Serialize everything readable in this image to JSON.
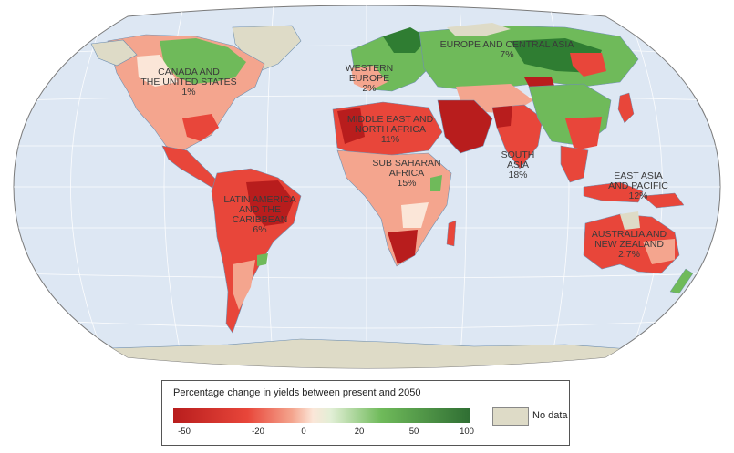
{
  "regions": [
    {
      "id": "canada-us",
      "lines": [
        "CANADA AND",
        "THE UNITED STATES",
        "1%"
      ]
    },
    {
      "id": "europe-central-asia",
      "lines": [
        "EUROPE AND CENTRAL ASIA",
        "7%"
      ]
    },
    {
      "id": "western-europe",
      "lines": [
        "WESTERN",
        "EUROPE",
        "2%"
      ]
    },
    {
      "id": "middle-east-north-africa",
      "lines": [
        "MIDDLE EAST AND",
        "NORTH AFRICA",
        "11%"
      ]
    },
    {
      "id": "sub-saharan-africa",
      "lines": [
        "SUB SAHARAN",
        "AFRICA",
        "15%"
      ]
    },
    {
      "id": "south-asia",
      "lines": [
        "SOUTH",
        "ASIA",
        "18%"
      ]
    },
    {
      "id": "east-asia-pacific",
      "lines": [
        "EAST ASIA",
        "AND PACIFIC",
        "12%"
      ]
    },
    {
      "id": "latin-america-caribbean",
      "lines": [
        "LATIN AMERICA",
        "AND THE",
        "CARIBBEAN",
        "6%"
      ]
    },
    {
      "id": "australia-new-zealand",
      "lines": [
        "AUSTRALIA AND",
        "NEW ZEALAND",
        "2.7%"
      ]
    }
  ],
  "legend": {
    "title": "Percentage change in yields between present and 2050",
    "ticks": [
      "-50",
      "-20",
      "0",
      "20",
      "50",
      "100"
    ],
    "nodata_label": "No data"
  },
  "colors": {
    "ocean": "#dde7f3",
    "land_no_data": "#dedbc7",
    "strong_loss": "#b81d1d",
    "loss": "#e8463a",
    "mild_loss": "#f4a58e",
    "neutral": "#fbe6d8",
    "gain": "#6fba5a",
    "strong_gain": "#2f7d32"
  }
}
